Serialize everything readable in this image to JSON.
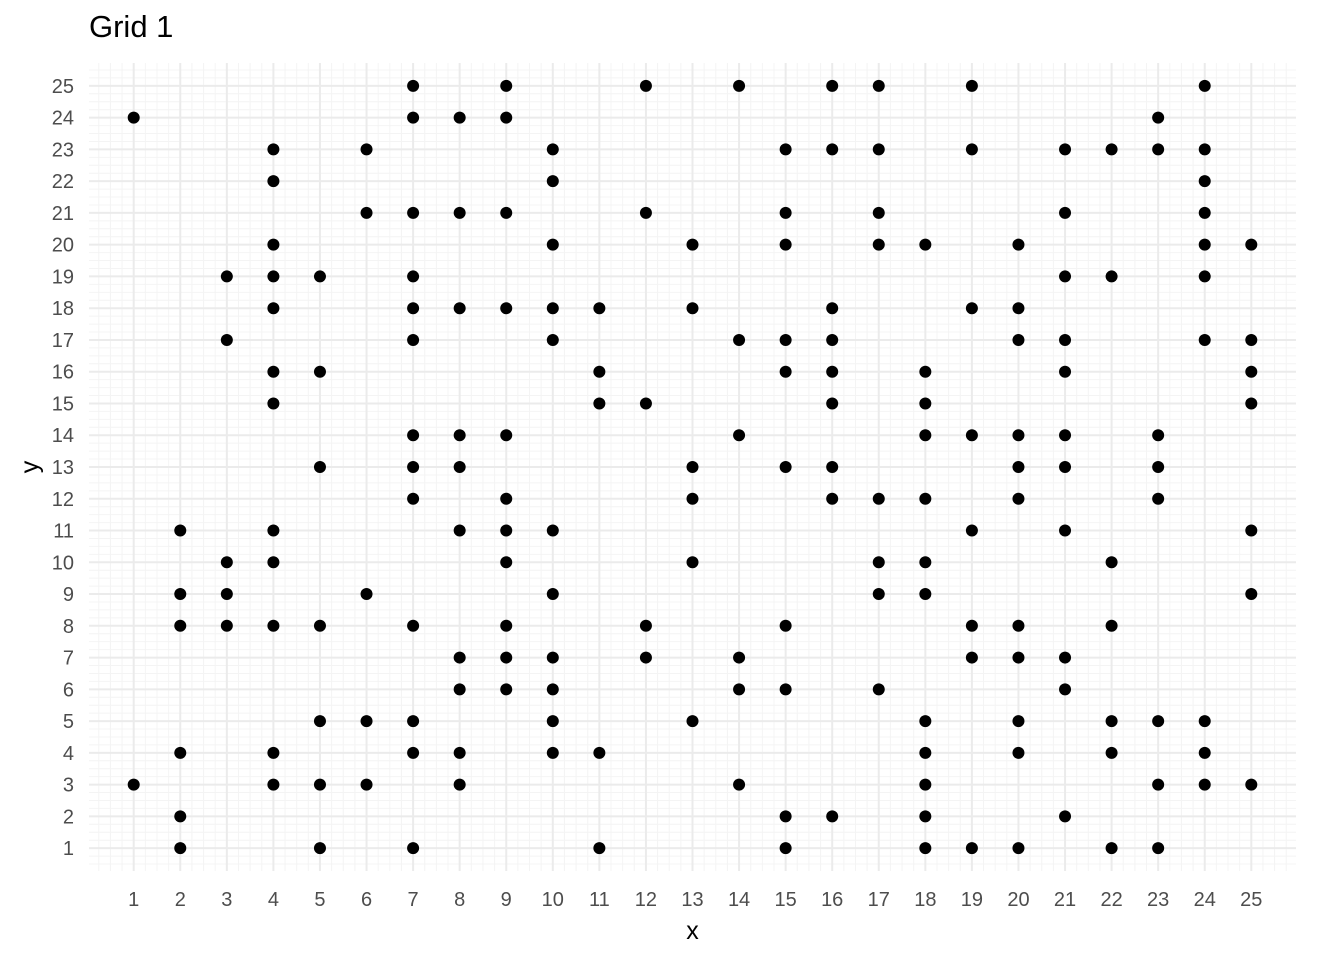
{
  "chart_data": {
    "type": "scatter",
    "title": "Grid 1",
    "xlabel": "x",
    "ylabel": "y",
    "xlim": [
      0.04,
      25.96
    ],
    "ylim": [
      0.28,
      25.72
    ],
    "x_ticks": [
      1,
      2,
      3,
      4,
      5,
      6,
      7,
      8,
      9,
      10,
      11,
      12,
      13,
      14,
      15,
      16,
      17,
      18,
      19,
      20,
      21,
      22,
      23,
      24,
      25
    ],
    "y_ticks": [
      1,
      2,
      3,
      4,
      5,
      6,
      7,
      8,
      9,
      10,
      11,
      12,
      13,
      14,
      15,
      16,
      17,
      18,
      19,
      20,
      21,
      22,
      23,
      24,
      25
    ],
    "grid": true,
    "minor_grid": true,
    "legend": "none",
    "colors": {
      "point": "#000000",
      "grid_major": "#ebebeb",
      "grid_minor": "#f4f4f4",
      "tick_label": "#4d4d4d",
      "axis_title": "#000000",
      "background": "#ffffff"
    },
    "points": [
      [
        7,
        25
      ],
      [
        9,
        25
      ],
      [
        12,
        25
      ],
      [
        14,
        25
      ],
      [
        16,
        25
      ],
      [
        17,
        25
      ],
      [
        19,
        25
      ],
      [
        24,
        25
      ],
      [
        1,
        24
      ],
      [
        7,
        24
      ],
      [
        8,
        24
      ],
      [
        9,
        24
      ],
      [
        23,
        24
      ],
      [
        4,
        23
      ],
      [
        6,
        23
      ],
      [
        10,
        23
      ],
      [
        15,
        23
      ],
      [
        16,
        23
      ],
      [
        17,
        23
      ],
      [
        19,
        23
      ],
      [
        21,
        23
      ],
      [
        22,
        23
      ],
      [
        23,
        23
      ],
      [
        24,
        23
      ],
      [
        4,
        22
      ],
      [
        10,
        22
      ],
      [
        24,
        22
      ],
      [
        6,
        21
      ],
      [
        7,
        21
      ],
      [
        8,
        21
      ],
      [
        9,
        21
      ],
      [
        12,
        21
      ],
      [
        15,
        21
      ],
      [
        17,
        21
      ],
      [
        21,
        21
      ],
      [
        24,
        21
      ],
      [
        4,
        20
      ],
      [
        10,
        20
      ],
      [
        13,
        20
      ],
      [
        15,
        20
      ],
      [
        17,
        20
      ],
      [
        18,
        20
      ],
      [
        20,
        20
      ],
      [
        24,
        20
      ],
      [
        25,
        20
      ],
      [
        3,
        19
      ],
      [
        4,
        19
      ],
      [
        5,
        19
      ],
      [
        7,
        19
      ],
      [
        21,
        19
      ],
      [
        22,
        19
      ],
      [
        24,
        19
      ],
      [
        4,
        18
      ],
      [
        7,
        18
      ],
      [
        8,
        18
      ],
      [
        9,
        18
      ],
      [
        10,
        18
      ],
      [
        11,
        18
      ],
      [
        13,
        18
      ],
      [
        16,
        18
      ],
      [
        19,
        18
      ],
      [
        20,
        18
      ],
      [
        3,
        17
      ],
      [
        7,
        17
      ],
      [
        10,
        17
      ],
      [
        14,
        17
      ],
      [
        15,
        17
      ],
      [
        16,
        17
      ],
      [
        20,
        17
      ],
      [
        21,
        17
      ],
      [
        24,
        17
      ],
      [
        25,
        17
      ],
      [
        4,
        16
      ],
      [
        5,
        16
      ],
      [
        11,
        16
      ],
      [
        15,
        16
      ],
      [
        16,
        16
      ],
      [
        18,
        16
      ],
      [
        21,
        16
      ],
      [
        25,
        16
      ],
      [
        4,
        15
      ],
      [
        11,
        15
      ],
      [
        12,
        15
      ],
      [
        16,
        15
      ],
      [
        18,
        15
      ],
      [
        25,
        15
      ],
      [
        7,
        14
      ],
      [
        8,
        14
      ],
      [
        9,
        14
      ],
      [
        14,
        14
      ],
      [
        18,
        14
      ],
      [
        19,
        14
      ],
      [
        20,
        14
      ],
      [
        21,
        14
      ],
      [
        23,
        14
      ],
      [
        5,
        13
      ],
      [
        7,
        13
      ],
      [
        8,
        13
      ],
      [
        13,
        13
      ],
      [
        15,
        13
      ],
      [
        16,
        13
      ],
      [
        20,
        13
      ],
      [
        21,
        13
      ],
      [
        23,
        13
      ],
      [
        7,
        12
      ],
      [
        9,
        12
      ],
      [
        13,
        12
      ],
      [
        16,
        12
      ],
      [
        17,
        12
      ],
      [
        18,
        12
      ],
      [
        20,
        12
      ],
      [
        23,
        12
      ],
      [
        2,
        11
      ],
      [
        4,
        11
      ],
      [
        8,
        11
      ],
      [
        9,
        11
      ],
      [
        10,
        11
      ],
      [
        19,
        11
      ],
      [
        21,
        11
      ],
      [
        25,
        11
      ],
      [
        3,
        10
      ],
      [
        4,
        10
      ],
      [
        9,
        10
      ],
      [
        13,
        10
      ],
      [
        17,
        10
      ],
      [
        18,
        10
      ],
      [
        22,
        10
      ],
      [
        2,
        9
      ],
      [
        3,
        9
      ],
      [
        6,
        9
      ],
      [
        10,
        9
      ],
      [
        17,
        9
      ],
      [
        18,
        9
      ],
      [
        25,
        9
      ],
      [
        2,
        8
      ],
      [
        3,
        8
      ],
      [
        4,
        8
      ],
      [
        5,
        8
      ],
      [
        7,
        8
      ],
      [
        9,
        8
      ],
      [
        12,
        8
      ],
      [
        15,
        8
      ],
      [
        19,
        8
      ],
      [
        20,
        8
      ],
      [
        22,
        8
      ],
      [
        8,
        7
      ],
      [
        9,
        7
      ],
      [
        10,
        7
      ],
      [
        12,
        7
      ],
      [
        14,
        7
      ],
      [
        19,
        7
      ],
      [
        20,
        7
      ],
      [
        21,
        7
      ],
      [
        8,
        6
      ],
      [
        9,
        6
      ],
      [
        10,
        6
      ],
      [
        14,
        6
      ],
      [
        15,
        6
      ],
      [
        17,
        6
      ],
      [
        21,
        6
      ],
      [
        5,
        5
      ],
      [
        6,
        5
      ],
      [
        7,
        5
      ],
      [
        10,
        5
      ],
      [
        13,
        5
      ],
      [
        18,
        5
      ],
      [
        20,
        5
      ],
      [
        22,
        5
      ],
      [
        23,
        5
      ],
      [
        24,
        5
      ],
      [
        2,
        4
      ],
      [
        4,
        4
      ],
      [
        7,
        4
      ],
      [
        8,
        4
      ],
      [
        10,
        4
      ],
      [
        11,
        4
      ],
      [
        18,
        4
      ],
      [
        20,
        4
      ],
      [
        22,
        4
      ],
      [
        24,
        4
      ],
      [
        1,
        3
      ],
      [
        4,
        3
      ],
      [
        5,
        3
      ],
      [
        6,
        3
      ],
      [
        8,
        3
      ],
      [
        14,
        3
      ],
      [
        18,
        3
      ],
      [
        23,
        3
      ],
      [
        24,
        3
      ],
      [
        25,
        3
      ],
      [
        2,
        2
      ],
      [
        15,
        2
      ],
      [
        16,
        2
      ],
      [
        18,
        2
      ],
      [
        21,
        2
      ],
      [
        2,
        1
      ],
      [
        5,
        1
      ],
      [
        7,
        1
      ],
      [
        11,
        1
      ],
      [
        15,
        1
      ],
      [
        18,
        1
      ],
      [
        19,
        1
      ],
      [
        20,
        1
      ],
      [
        22,
        1
      ],
      [
        23,
        1
      ]
    ]
  }
}
